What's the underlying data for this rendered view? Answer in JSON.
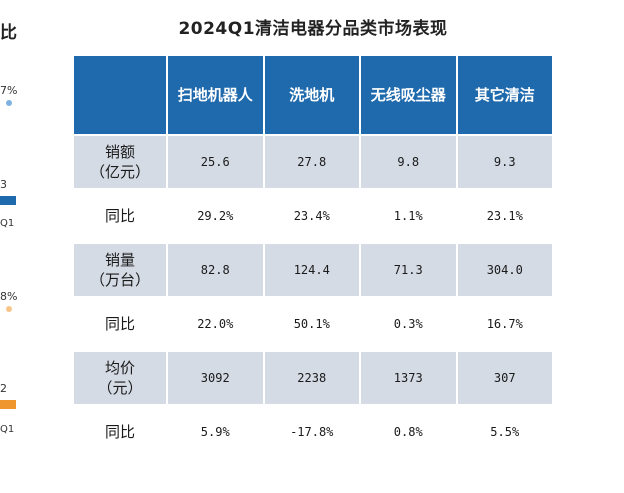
{
  "title": "2024Q1清洁电器分品类市场表现",
  "colors": {
    "header_bg": "#1f6aad",
    "shade_row": "#d5dbe5",
    "blue_bar": "#1f6aad",
    "orange_bar": "#f0962e"
  },
  "left_fragment": {
    "title": "比",
    "labels": [
      "7%",
      "3",
      "Q1",
      "8%",
      "2",
      "Q1"
    ]
  },
  "chart_data": {
    "type": "table",
    "title": "2024Q1清洁电器分品类市场表现",
    "columns": [
      "扫地机器人",
      "洗地机",
      "无线吸尘器",
      "其它清洁"
    ],
    "rows": [
      {
        "label": "销额（亿元）",
        "label_lines": [
          "销额",
          "（亿元）"
        ],
        "values": [
          "25.6",
          "27.8",
          "9.8",
          "9.3"
        ]
      },
      {
        "label": "同比",
        "label_lines": [
          "同比"
        ],
        "values": [
          "29.2%",
          "23.4%",
          "1.1%",
          "23.1%"
        ]
      },
      {
        "label": "销量（万台）",
        "label_lines": [
          "销量",
          "（万台）"
        ],
        "values": [
          "82.8",
          "124.4",
          "71.3",
          "304.0"
        ]
      },
      {
        "label": "同比",
        "label_lines": [
          "同比"
        ],
        "values": [
          "22.0%",
          "50.1%",
          "0.3%",
          "16.7%"
        ]
      },
      {
        "label": "均价（元）",
        "label_lines": [
          "均价",
          "（元）"
        ],
        "values": [
          "3092",
          "2238",
          "1373",
          "307"
        ]
      },
      {
        "label": "同比",
        "label_lines": [
          "同比"
        ],
        "values": [
          "5.9%",
          "-17.8%",
          "0.8%",
          "5.5%"
        ]
      }
    ]
  }
}
